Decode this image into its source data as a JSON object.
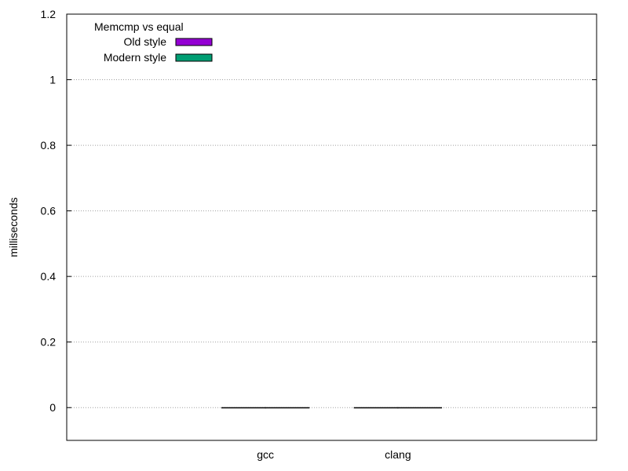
{
  "chart_data": {
    "type": "bar",
    "title": "",
    "xlabel": "",
    "ylabel": "milliseconds",
    "ylim": [
      -0.1,
      1.2
    ],
    "yticks": [
      "0",
      "0.2",
      "0.4",
      "0.6",
      "0.8",
      "1",
      "1.2"
    ],
    "ytick_values": [
      0,
      0.2,
      0.4,
      0.6,
      0.8,
      1.0,
      1.2
    ],
    "categories": [
      "gcc",
      "clang"
    ],
    "legend_title": "Memcmp vs equal",
    "legend_position": "top-left",
    "grid": "y-dotted",
    "series": [
      {
        "name": "Old style",
        "color": "#9400d3",
        "values": [
          0.0,
          0.0
        ]
      },
      {
        "name": "Modern style",
        "color": "#009e73",
        "values": [
          0.0,
          0.0
        ]
      }
    ]
  }
}
